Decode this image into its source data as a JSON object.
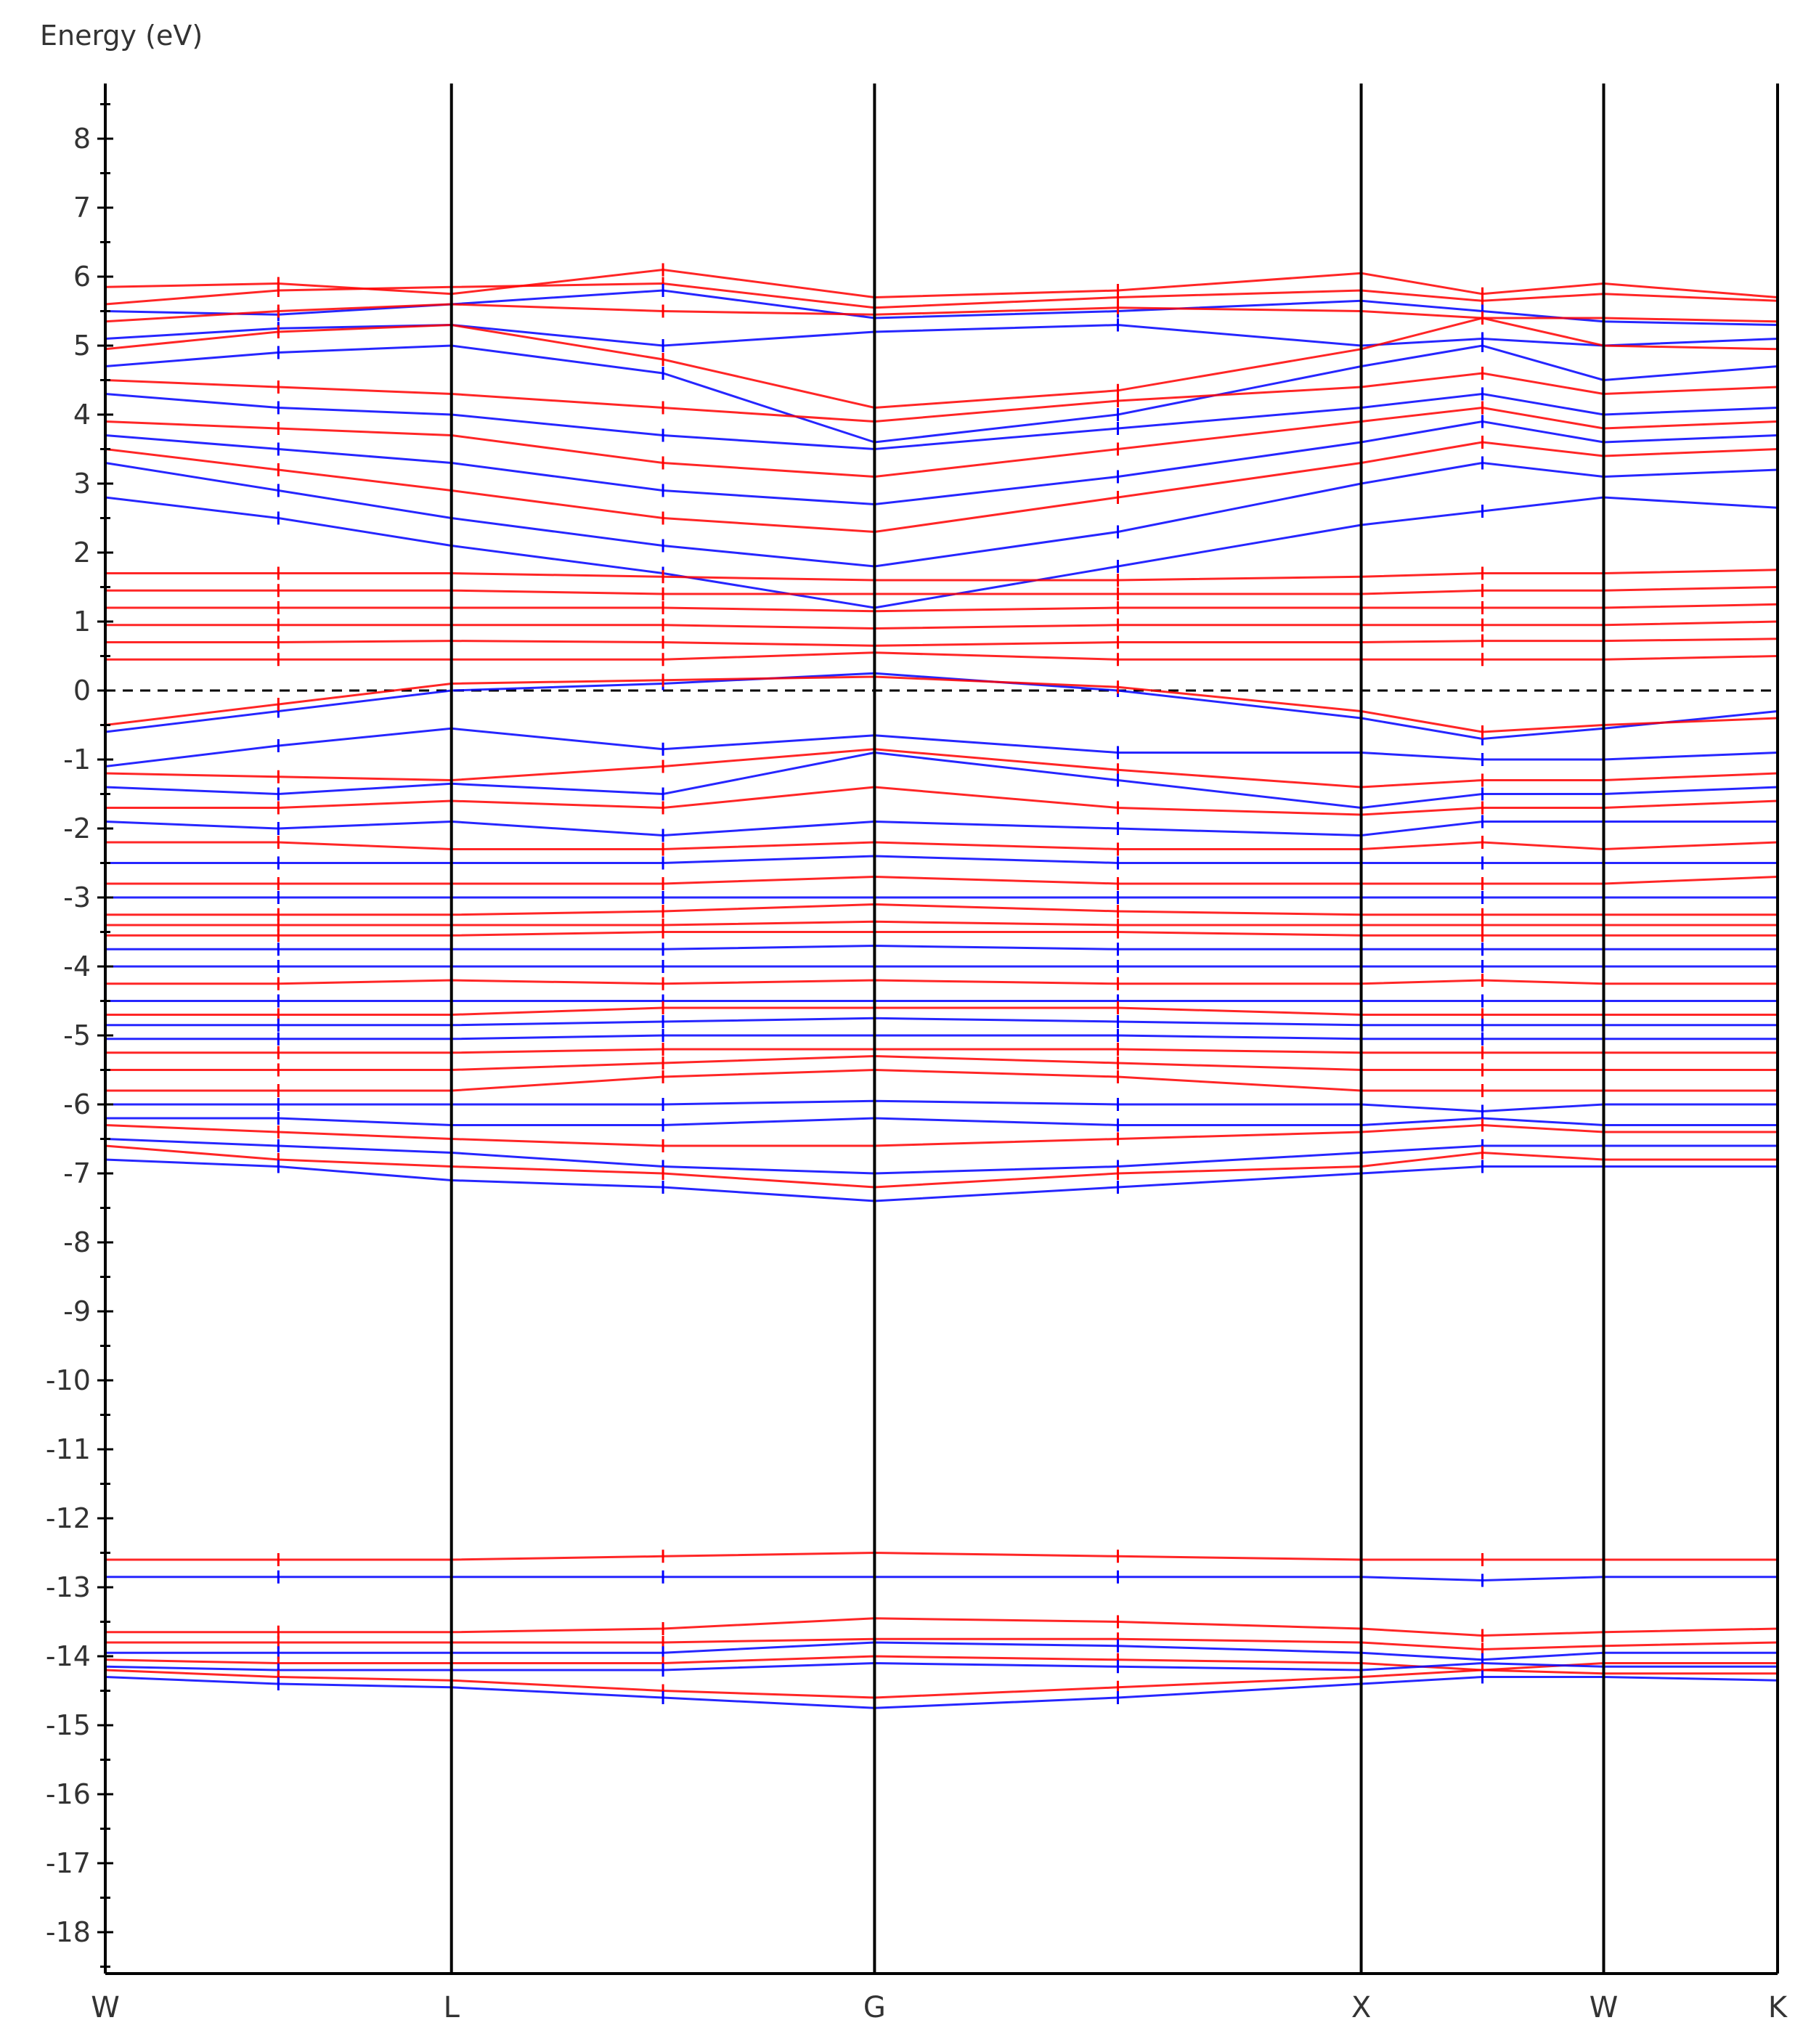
{
  "chart_data": {
    "type": "line",
    "title": "",
    "ylabel": "Energy (eV)",
    "xlabel": "",
    "ylim": [
      -18.6,
      8.8
    ],
    "yticks": [
      "8",
      "7",
      "6",
      "5",
      "4",
      "3",
      "2",
      "1",
      "0",
      "-1",
      "-2",
      "-3",
      "-4",
      "-5",
      "-6",
      "-7",
      "-8",
      "-9",
      "-10",
      "-11",
      "-12",
      "-13",
      "-14",
      "-15",
      "-16",
      "-17",
      "-18"
    ],
    "k_labels": [
      "W",
      "L",
      "G",
      "X",
      "W",
      "K"
    ],
    "k_positions": [
      0,
      0.207,
      0.46,
      0.751,
      0.896,
      1.0
    ],
    "fermi_level": 0,
    "grid": false,
    "colors": {
      "spin_up": "#ff0000",
      "spin_down": "#0000ff",
      "axis": "#000000",
      "fermi": "#000000"
    },
    "series": [
      {
        "name": "",
        "color": "#ff0000",
        "values": [
          5.85,
          5.9,
          5.75,
          6.1,
          5.7,
          5.8,
          6.05,
          5.75,
          5.9,
          5.7
        ]
      },
      {
        "name": "",
        "color": "#ff0000",
        "values": [
          5.6,
          5.8,
          5.85,
          5.9,
          5.55,
          5.7,
          5.8,
          5.65,
          5.75,
          5.65
        ]
      },
      {
        "name": "",
        "color": "#0000ff",
        "values": [
          5.5,
          5.45,
          5.6,
          5.8,
          5.4,
          5.5,
          5.65,
          5.5,
          5.35,
          5.3
        ]
      },
      {
        "name": "",
        "color": "#ff0000",
        "values": [
          5.35,
          5.5,
          5.6,
          5.5,
          5.45,
          5.55,
          5.5,
          5.4,
          5.4,
          5.35
        ]
      },
      {
        "name": "",
        "color": "#0000ff",
        "values": [
          5.1,
          5.25,
          5.3,
          5.0,
          5.2,
          5.3,
          5.0,
          5.1,
          5.0,
          5.1
        ]
      },
      {
        "name": "",
        "color": "#ff0000",
        "values": [
          4.95,
          5.2,
          5.3,
          4.8,
          4.1,
          4.35,
          4.95,
          5.4,
          5.0,
          4.95
        ]
      },
      {
        "name": "",
        "color": "#0000ff",
        "values": [
          4.7,
          4.9,
          5.0,
          4.6,
          3.6,
          4.0,
          4.7,
          5.0,
          4.5,
          4.7
        ]
      },
      {
        "name": "",
        "color": "#ff0000",
        "values": [
          4.5,
          4.4,
          4.3,
          4.1,
          3.9,
          4.2,
          4.4,
          4.6,
          4.3,
          4.4
        ]
      },
      {
        "name": "",
        "color": "#0000ff",
        "values": [
          4.3,
          4.1,
          4.0,
          3.7,
          3.5,
          3.8,
          4.1,
          4.3,
          4.0,
          4.1
        ]
      },
      {
        "name": "",
        "color": "#ff0000",
        "values": [
          3.9,
          3.8,
          3.7,
          3.3,
          3.1,
          3.5,
          3.9,
          4.1,
          3.8,
          3.9
        ]
      },
      {
        "name": "",
        "color": "#0000ff",
        "values": [
          3.7,
          3.5,
          3.3,
          2.9,
          2.7,
          3.1,
          3.6,
          3.9,
          3.6,
          3.7
        ]
      },
      {
        "name": "",
        "color": "#ff0000",
        "values": [
          3.5,
          3.2,
          2.9,
          2.5,
          2.3,
          2.8,
          3.3,
          3.6,
          3.4,
          3.5
        ]
      },
      {
        "name": "",
        "color": "#0000ff",
        "values": [
          3.3,
          2.9,
          2.5,
          2.1,
          1.8,
          2.3,
          3.0,
          3.3,
          3.1,
          3.2
        ]
      },
      {
        "name": "",
        "color": "#0000ff",
        "values": [
          2.8,
          2.5,
          2.1,
          1.7,
          1.2,
          1.8,
          2.4,
          2.6,
          2.8,
          2.65
        ]
      },
      {
        "name": "",
        "color": "#ff0000",
        "values": [
          1.7,
          1.7,
          1.7,
          1.65,
          1.6,
          1.6,
          1.65,
          1.7,
          1.7,
          1.75
        ]
      },
      {
        "name": "",
        "color": "#ff0000",
        "values": [
          1.45,
          1.45,
          1.45,
          1.4,
          1.4,
          1.4,
          1.4,
          1.45,
          1.45,
          1.5
        ]
      },
      {
        "name": "",
        "color": "#ff0000",
        "values": [
          1.2,
          1.2,
          1.2,
          1.2,
          1.15,
          1.2,
          1.2,
          1.2,
          1.2,
          1.25
        ]
      },
      {
        "name": "",
        "color": "#ff0000",
        "values": [
          0.95,
          0.95,
          0.95,
          0.95,
          0.9,
          0.95,
          0.95,
          0.95,
          0.95,
          1.0
        ]
      },
      {
        "name": "",
        "color": "#ff0000",
        "values": [
          0.7,
          0.7,
          0.72,
          0.7,
          0.65,
          0.7,
          0.7,
          0.72,
          0.72,
          0.75
        ]
      },
      {
        "name": "",
        "color": "#ff0000",
        "values": [
          0.45,
          0.45,
          0.45,
          0.45,
          0.55,
          0.45,
          0.45,
          0.45,
          0.45,
          0.5
        ]
      },
      {
        "name": "",
        "color": "#0000ff",
        "values": [
          -0.6,
          -0.3,
          0.0,
          0.1,
          0.25,
          0.0,
          -0.4,
          -0.7,
          -0.55,
          -0.3
        ]
      },
      {
        "name": "",
        "color": "#ff0000",
        "values": [
          -0.5,
          -0.2,
          0.1,
          0.15,
          0.2,
          0.05,
          -0.3,
          -0.6,
          -0.5,
          -0.4
        ]
      },
      {
        "name": "",
        "color": "#0000ff",
        "values": [
          -1.1,
          -0.8,
          -0.55,
          -0.85,
          -0.65,
          -0.9,
          -0.9,
          -1.0,
          -1.0,
          -0.9
        ]
      },
      {
        "name": "",
        "color": "#ff0000",
        "values": [
          -1.2,
          -1.25,
          -1.3,
          -1.1,
          -0.85,
          -1.15,
          -1.4,
          -1.3,
          -1.3,
          -1.2
        ]
      },
      {
        "name": "",
        "color": "#0000ff",
        "values": [
          -1.4,
          -1.5,
          -1.35,
          -1.5,
          -0.9,
          -1.3,
          -1.7,
          -1.5,
          -1.5,
          -1.4
        ]
      },
      {
        "name": "",
        "color": "#ff0000",
        "values": [
          -1.7,
          -1.7,
          -1.6,
          -1.7,
          -1.4,
          -1.7,
          -1.8,
          -1.7,
          -1.7,
          -1.6
        ]
      },
      {
        "name": "",
        "color": "#0000ff",
        "values": [
          -1.9,
          -2.0,
          -1.9,
          -2.1,
          -1.9,
          -2.0,
          -2.1,
          -1.9,
          -1.9,
          -1.9
        ]
      },
      {
        "name": "",
        "color": "#ff0000",
        "values": [
          -2.2,
          -2.2,
          -2.3,
          -2.3,
          -2.2,
          -2.3,
          -2.3,
          -2.2,
          -2.3,
          -2.2
        ]
      },
      {
        "name": "",
        "color": "#0000ff",
        "values": [
          -2.5,
          -2.5,
          -2.5,
          -2.5,
          -2.4,
          -2.5,
          -2.5,
          -2.5,
          -2.5,
          -2.5
        ]
      },
      {
        "name": "",
        "color": "#ff0000",
        "values": [
          -2.8,
          -2.8,
          -2.8,
          -2.8,
          -2.7,
          -2.8,
          -2.8,
          -2.8,
          -2.8,
          -2.7
        ]
      },
      {
        "name": "",
        "color": "#0000ff",
        "values": [
          -3.0,
          -3.0,
          -3.0,
          -3.0,
          -3.0,
          -3.0,
          -3.0,
          -3.0,
          -3.0,
          -3.0
        ]
      },
      {
        "name": "",
        "color": "#ff0000",
        "values": [
          -3.25,
          -3.25,
          -3.25,
          -3.2,
          -3.1,
          -3.2,
          -3.25,
          -3.25,
          -3.25,
          -3.25
        ]
      },
      {
        "name": "",
        "color": "#ff0000",
        "values": [
          -3.4,
          -3.4,
          -3.4,
          -3.4,
          -3.35,
          -3.4,
          -3.4,
          -3.4,
          -3.4,
          -3.4
        ]
      },
      {
        "name": "",
        "color": "#ff0000",
        "values": [
          -3.55,
          -3.55,
          -3.55,
          -3.5,
          -3.5,
          -3.5,
          -3.55,
          -3.55,
          -3.55,
          -3.55
        ]
      },
      {
        "name": "",
        "color": "#0000ff",
        "values": [
          -3.75,
          -3.75,
          -3.75,
          -3.75,
          -3.7,
          -3.75,
          -3.75,
          -3.75,
          -3.75,
          -3.75
        ]
      },
      {
        "name": "",
        "color": "#0000ff",
        "values": [
          -4.0,
          -4.0,
          -4.0,
          -4.0,
          -4.0,
          -4.0,
          -4.0,
          -4.0,
          -4.0,
          -4.0
        ]
      },
      {
        "name": "",
        "color": "#ff0000",
        "values": [
          -4.25,
          -4.25,
          -4.2,
          -4.25,
          -4.2,
          -4.25,
          -4.25,
          -4.2,
          -4.25,
          -4.25
        ]
      },
      {
        "name": "",
        "color": "#0000ff",
        "values": [
          -4.5,
          -4.5,
          -4.5,
          -4.5,
          -4.5,
          -4.5,
          -4.5,
          -4.5,
          -4.5,
          -4.5
        ]
      },
      {
        "name": "",
        "color": "#ff0000",
        "values": [
          -4.7,
          -4.7,
          -4.7,
          -4.6,
          -4.6,
          -4.6,
          -4.7,
          -4.7,
          -4.7,
          -4.7
        ]
      },
      {
        "name": "",
        "color": "#0000ff",
        "values": [
          -4.85,
          -4.85,
          -4.85,
          -4.8,
          -4.75,
          -4.8,
          -4.85,
          -4.85,
          -4.85,
          -4.85
        ]
      },
      {
        "name": "",
        "color": "#0000ff",
        "values": [
          -5.05,
          -5.05,
          -5.05,
          -5.0,
          -5.0,
          -5.0,
          -5.05,
          -5.05,
          -5.05,
          -5.05
        ]
      },
      {
        "name": "",
        "color": "#ff0000",
        "values": [
          -5.25,
          -5.25,
          -5.25,
          -5.2,
          -5.2,
          -5.2,
          -5.25,
          -5.25,
          -5.25,
          -5.25
        ]
      },
      {
        "name": "",
        "color": "#ff0000",
        "values": [
          -5.5,
          -5.5,
          -5.5,
          -5.4,
          -5.3,
          -5.4,
          -5.5,
          -5.5,
          -5.5,
          -5.5
        ]
      },
      {
        "name": "",
        "color": "#ff0000",
        "values": [
          -5.8,
          -5.8,
          -5.8,
          -5.6,
          -5.5,
          -5.6,
          -5.8,
          -5.8,
          -5.8,
          -5.8
        ]
      },
      {
        "name": "",
        "color": "#0000ff",
        "values": [
          -6.0,
          -6.0,
          -6.0,
          -6.0,
          -5.95,
          -6.0,
          -6.0,
          -6.1,
          -6.0,
          -6.0
        ]
      },
      {
        "name": "",
        "color": "#0000ff",
        "values": [
          -6.2,
          -6.2,
          -6.3,
          -6.3,
          -6.2,
          -6.3,
          -6.3,
          -6.2,
          -6.3,
          -6.3
        ]
      },
      {
        "name": "",
        "color": "#ff0000",
        "values": [
          -6.3,
          -6.4,
          -6.5,
          -6.6,
          -6.6,
          -6.5,
          -6.4,
          -6.3,
          -6.4,
          -6.4
        ]
      },
      {
        "name": "",
        "color": "#0000ff",
        "values": [
          -6.5,
          -6.6,
          -6.7,
          -6.9,
          -7.0,
          -6.9,
          -6.7,
          -6.6,
          -6.6,
          -6.6
        ]
      },
      {
        "name": "",
        "color": "#ff0000",
        "values": [
          -6.6,
          -6.8,
          -6.9,
          -7.0,
          -7.2,
          -7.0,
          -6.9,
          -6.7,
          -6.8,
          -6.8
        ]
      },
      {
        "name": "",
        "color": "#0000ff",
        "values": [
          -6.8,
          -6.9,
          -7.1,
          -7.2,
          -7.4,
          -7.2,
          -7.0,
          -6.9,
          -6.9,
          -6.9
        ]
      },
      {
        "name": "",
        "color": "#ff0000",
        "values": [
          -12.6,
          -12.6,
          -12.6,
          -12.55,
          -12.5,
          -12.55,
          -12.6,
          -12.6,
          -12.6,
          -12.6
        ]
      },
      {
        "name": "",
        "color": "#0000ff",
        "values": [
          -12.85,
          -12.85,
          -12.85,
          -12.85,
          -12.85,
          -12.85,
          -12.85,
          -12.9,
          -12.85,
          -12.85
        ]
      },
      {
        "name": "",
        "color": "#ff0000",
        "values": [
          -13.65,
          -13.65,
          -13.65,
          -13.6,
          -13.45,
          -13.5,
          -13.6,
          -13.7,
          -13.65,
          -13.6
        ]
      },
      {
        "name": "",
        "color": "#ff0000",
        "values": [
          -13.8,
          -13.8,
          -13.8,
          -13.8,
          -13.75,
          -13.75,
          -13.8,
          -13.9,
          -13.85,
          -13.8
        ]
      },
      {
        "name": "",
        "color": "#0000ff",
        "values": [
          -13.95,
          -13.95,
          -13.95,
          -13.95,
          -13.8,
          -13.85,
          -13.95,
          -14.05,
          -13.95,
          -13.95
        ]
      },
      {
        "name": "",
        "color": "#ff0000",
        "values": [
          -14.05,
          -14.1,
          -14.1,
          -14.1,
          -14.0,
          -14.05,
          -14.1,
          -14.2,
          -14.1,
          -14.1
        ]
      },
      {
        "name": "",
        "color": "#0000ff",
        "values": [
          -14.15,
          -14.2,
          -14.2,
          -14.2,
          -14.1,
          -14.15,
          -14.2,
          -14.1,
          -14.15,
          -14.15
        ]
      },
      {
        "name": "",
        "color": "#ff0000",
        "values": [
          -14.2,
          -14.3,
          -14.35,
          -14.5,
          -14.6,
          -14.45,
          -14.3,
          -14.2,
          -14.25,
          -14.25
        ]
      },
      {
        "name": "",
        "color": "#0000ff",
        "values": [
          -14.3,
          -14.4,
          -14.45,
          -14.6,
          -14.75,
          -14.6,
          -14.4,
          -14.3,
          -14.3,
          -14.35
        ]
      }
    ],
    "x": [
      0,
      0.1035,
      0.207,
      0.3335,
      0.46,
      0.6055,
      0.751,
      0.8235,
      0.896,
      1.0
    ]
  }
}
